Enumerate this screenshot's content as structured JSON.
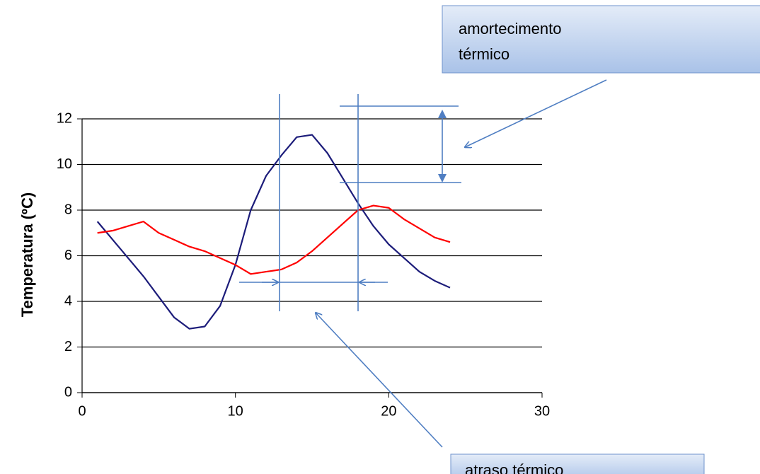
{
  "chart_data": {
    "type": "line",
    "y_label": "Temperatura (ºC)",
    "x": [
      1,
      2,
      3,
      4,
      5,
      6,
      7,
      8,
      9,
      10,
      11,
      12,
      13,
      14,
      15,
      16,
      17,
      18,
      19,
      20,
      21,
      22,
      23,
      24
    ],
    "series": [
      {
        "color": "#1c1c7a",
        "values": [
          7.5,
          6.7,
          5.9,
          5.1,
          4.2,
          3.3,
          2.8,
          2.9,
          3.8,
          5.6,
          8.0,
          9.5,
          10.4,
          11.2,
          11.3,
          10.5,
          9.4,
          8.3,
          7.3,
          6.5,
          5.9,
          5.3,
          4.9,
          4.6
        ]
      },
      {
        "color": "#ff0000",
        "values": [
          7.0,
          7.1,
          7.3,
          7.5,
          7.0,
          6.7,
          6.4,
          6.2,
          5.9,
          5.6,
          5.2,
          5.3,
          5.4,
          5.7,
          6.2,
          6.8,
          7.4,
          8.0,
          8.2,
          8.1,
          7.6,
          7.2,
          6.8,
          6.6
        ]
      }
    ],
    "xlim": [
      0,
      30
    ],
    "xticks": [
      0,
      10,
      20,
      30
    ],
    "ylim": [
      0,
      12
    ],
    "yticks": [
      0,
      2,
      4,
      6,
      8,
      10,
      12
    ],
    "grid": true,
    "annotations": [
      {
        "lines": [
          "amortecimento",
          "térmico"
        ]
      },
      {
        "lines": [
          "atraso térmico"
        ]
      }
    ]
  }
}
